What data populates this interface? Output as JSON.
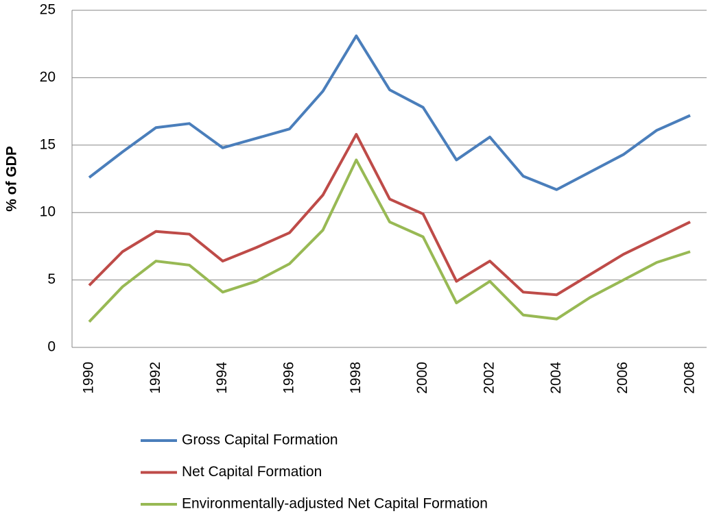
{
  "chart_data": {
    "type": "line",
    "y_label": "% of GDP",
    "categories": [
      "1990",
      null,
      "1992",
      null,
      "1994",
      null,
      "1996",
      null,
      "1998",
      null,
      "2000",
      null,
      "2002",
      null,
      "2004",
      null,
      "2006",
      null,
      "2008"
    ],
    "series": [
      {
        "name": "Gross Capital Formation",
        "color": "#4a7ebb",
        "values": [
          12.6,
          14.5,
          16.3,
          16.6,
          14.8,
          15.5,
          16.2,
          19.0,
          23.1,
          19.1,
          17.8,
          13.9,
          15.6,
          12.7,
          11.7,
          13.0,
          14.3,
          16.1,
          17.2
        ]
      },
      {
        "name": "Net Capital Formation",
        "color": "#be4b48",
        "values": [
          4.6,
          7.1,
          8.6,
          8.4,
          6.4,
          7.4,
          8.5,
          11.3,
          15.8,
          11.0,
          9.9,
          4.9,
          6.4,
          4.1,
          3.9,
          5.4,
          6.9,
          8.1,
          9.3
        ]
      },
      {
        "name": "Environmentally-adjusted Net Capital Formation",
        "color": "#98b954",
        "values": [
          1.9,
          4.5,
          6.4,
          6.1,
          4.1,
          4.9,
          6.2,
          8.7,
          13.9,
          9.3,
          8.2,
          3.3,
          4.9,
          2.4,
          2.1,
          3.7,
          5.0,
          6.3,
          7.1
        ]
      }
    ],
    "ylim": [
      0,
      25
    ],
    "yticks": [
      0,
      5,
      10,
      15,
      20,
      25
    ],
    "grid": true
  }
}
